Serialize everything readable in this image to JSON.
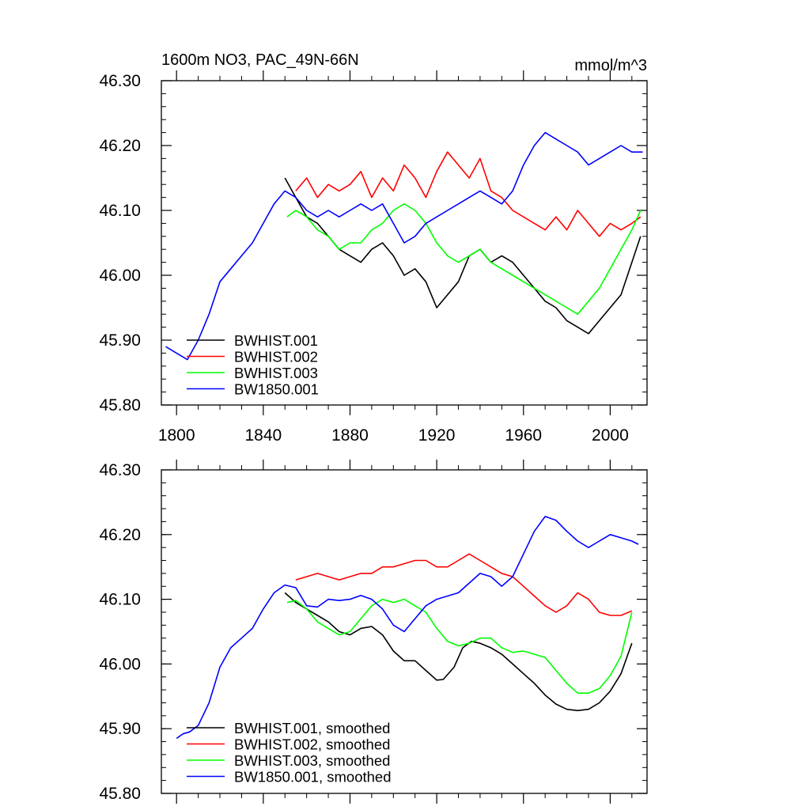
{
  "chart_data": [
    {
      "type": "line",
      "title_left": "1600m NO3, PAC_49N-66N",
      "title_right": "mmol/m^3",
      "xlim": [
        1793,
        2017
      ],
      "ylim": [
        45.8,
        46.3
      ],
      "xticks": [
        1800,
        1840,
        1880,
        1920,
        1960,
        2000
      ],
      "xtick_labels": [
        "1800",
        "1840",
        "1880",
        "1920",
        "1960",
        "2000"
      ],
      "yticks": [
        45.8,
        45.9,
        46.0,
        46.1,
        46.2,
        46.3
      ],
      "ytick_labels": [
        "45.80",
        "45.90",
        "46.00",
        "46.10",
        "46.20",
        "46.30"
      ],
      "legend_position": "bottom-left",
      "series": [
        {
          "name": "BWHIST.001",
          "color": "#000000",
          "x": [
            1850,
            1855,
            1860,
            1865,
            1870,
            1875,
            1880,
            1885,
            1890,
            1895,
            1900,
            1905,
            1910,
            1915,
            1920,
            1925,
            1930,
            1935,
            1940,
            1945,
            1950,
            1955,
            1960,
            1965,
            1970,
            1975,
            1980,
            1985,
            1990,
            1995,
            2000,
            2005,
            2010,
            2014
          ],
          "y": [
            46.15,
            46.12,
            46.09,
            46.08,
            46.06,
            46.04,
            46.03,
            46.02,
            46.04,
            46.05,
            46.03,
            46.0,
            46.01,
            45.99,
            45.95,
            45.97,
            45.99,
            46.03,
            46.04,
            46.02,
            46.03,
            46.02,
            46.0,
            45.98,
            45.96,
            45.95,
            45.93,
            45.92,
            45.91,
            45.93,
            45.95,
            45.97,
            46.02,
            46.06
          ]
        },
        {
          "name": "BWHIST.002",
          "color": "#ff0000",
          "x": [
            1855,
            1860,
            1865,
            1870,
            1875,
            1880,
            1885,
            1890,
            1895,
            1900,
            1905,
            1910,
            1915,
            1920,
            1925,
            1930,
            1935,
            1940,
            1945,
            1950,
            1955,
            1960,
            1965,
            1970,
            1975,
            1980,
            1985,
            1990,
            1995,
            2000,
            2005,
            2010,
            2014
          ],
          "y": [
            46.13,
            46.15,
            46.12,
            46.14,
            46.13,
            46.14,
            46.16,
            46.12,
            46.15,
            46.13,
            46.17,
            46.15,
            46.12,
            46.16,
            46.19,
            46.17,
            46.15,
            46.18,
            46.13,
            46.12,
            46.1,
            46.09,
            46.08,
            46.07,
            46.09,
            46.07,
            46.1,
            46.08,
            46.06,
            46.08,
            46.07,
            46.08,
            46.09
          ]
        },
        {
          "name": "BWHIST.003",
          "color": "#00ff00",
          "x": [
            1851,
            1855,
            1860,
            1865,
            1870,
            1875,
            1880,
            1885,
            1890,
            1895,
            1900,
            1905,
            1910,
            1915,
            1920,
            1925,
            1930,
            1935,
            1940,
            1945,
            1950,
            1955,
            1960,
            1965,
            1970,
            1975,
            1980,
            1985,
            1990,
            1995,
            2000,
            2005,
            2010,
            2014
          ],
          "y": [
            46.09,
            46.1,
            46.09,
            46.07,
            46.06,
            46.04,
            46.05,
            46.05,
            46.07,
            46.08,
            46.1,
            46.11,
            46.1,
            46.08,
            46.05,
            46.03,
            46.02,
            46.03,
            46.04,
            46.02,
            46.01,
            46.0,
            45.99,
            45.98,
            45.97,
            45.96,
            45.95,
            45.94,
            45.96,
            45.98,
            46.01,
            46.04,
            46.07,
            46.1
          ]
        },
        {
          "name": "BW1850.001",
          "color": "#0000ff",
          "x": [
            1795,
            1800,
            1805,
            1810,
            1815,
            1820,
            1825,
            1830,
            1835,
            1840,
            1845,
            1850,
            1855,
            1860,
            1865,
            1870,
            1875,
            1880,
            1885,
            1890,
            1895,
            1900,
            1905,
            1910,
            1915,
            1920,
            1925,
            1930,
            1935,
            1940,
            1945,
            1950,
            1955,
            1960,
            1965,
            1970,
            1975,
            1980,
            1985,
            1990,
            1995,
            2000,
            2005,
            2010,
            2015
          ],
          "y": [
            45.89,
            45.88,
            45.87,
            45.9,
            45.94,
            45.99,
            46.01,
            46.03,
            46.05,
            46.08,
            46.11,
            46.13,
            46.12,
            46.1,
            46.09,
            46.1,
            46.09,
            46.1,
            46.11,
            46.1,
            46.11,
            46.08,
            46.05,
            46.06,
            46.08,
            46.09,
            46.1,
            46.11,
            46.12,
            46.13,
            46.12,
            46.11,
            46.13,
            46.17,
            46.2,
            46.22,
            46.21,
            46.2,
            46.19,
            46.17,
            46.18,
            46.19,
            46.2,
            46.19,
            46.19
          ]
        }
      ]
    },
    {
      "type": "line",
      "xlim": [
        1793,
        2017
      ],
      "ylim": [
        45.8,
        46.3
      ],
      "xticks": [
        1800,
        1840,
        1880,
        1920,
        1960,
        2000
      ],
      "yticks": [
        45.8,
        45.9,
        46.0,
        46.1,
        46.2,
        46.3
      ],
      "ytick_labels": [
        "45.80",
        "45.90",
        "46.00",
        "46.10",
        "46.20",
        "46.30"
      ],
      "legend_position": "bottom-left",
      "series": [
        {
          "name": "BWHIST.001, smoothed",
          "color": "#000000",
          "x": [
            1850,
            1855,
            1860,
            1865,
            1870,
            1875,
            1880,
            1885,
            1890,
            1895,
            1900,
            1905,
            1910,
            1915,
            1920,
            1923,
            1928,
            1932,
            1936,
            1940,
            1945,
            1950,
            1955,
            1960,
            1965,
            1970,
            1975,
            1980,
            1985,
            1990,
            1995,
            2000,
            2005,
            2010
          ],
          "y": [
            46.11,
            46.095,
            46.085,
            46.075,
            46.065,
            46.05,
            46.045,
            46.055,
            46.058,
            46.045,
            46.02,
            46.005,
            46.005,
            45.99,
            45.975,
            45.976,
            45.995,
            46.025,
            46.035,
            46.032,
            46.025,
            46.015,
            46.0,
            45.985,
            45.97,
            45.952,
            45.938,
            45.93,
            45.928,
            45.93,
            45.94,
            45.958,
            45.985,
            46.032
          ]
        },
        {
          "name": "BWHIST.002, smoothed",
          "color": "#ff0000",
          "x": [
            1855,
            1860,
            1865,
            1870,
            1875,
            1880,
            1885,
            1890,
            1895,
            1900,
            1905,
            1910,
            1915,
            1920,
            1925,
            1930,
            1935,
            1940,
            1945,
            1950,
            1955,
            1960,
            1965,
            1970,
            1975,
            1980,
            1985,
            1990,
            1995,
            2000,
            2005,
            2010
          ],
          "y": [
            46.13,
            46.135,
            46.14,
            46.135,
            46.13,
            46.135,
            46.14,
            46.14,
            46.15,
            46.15,
            46.155,
            46.16,
            46.16,
            46.15,
            46.15,
            46.16,
            46.17,
            46.16,
            46.15,
            46.14,
            46.135,
            46.12,
            46.105,
            46.09,
            46.08,
            46.09,
            46.11,
            46.1,
            46.08,
            46.075,
            46.075,
            46.082
          ]
        },
        {
          "name": "BWHIST.003, smoothed",
          "color": "#00ff00",
          "x": [
            1851,
            1855,
            1860,
            1865,
            1870,
            1875,
            1880,
            1885,
            1890,
            1895,
            1900,
            1905,
            1910,
            1915,
            1920,
            1925,
            1930,
            1935,
            1940,
            1945,
            1950,
            1955,
            1960,
            1965,
            1970,
            1975,
            1980,
            1985,
            1990,
            1995,
            2000,
            2005,
            2010
          ],
          "y": [
            46.095,
            46.098,
            46.085,
            46.065,
            46.055,
            46.045,
            46.05,
            46.07,
            46.09,
            46.1,
            46.095,
            46.1,
            46.09,
            46.08,
            46.055,
            46.035,
            46.028,
            46.032,
            46.04,
            46.04,
            46.025,
            46.018,
            46.02,
            46.015,
            46.01,
            45.99,
            45.97,
            45.955,
            45.955,
            45.962,
            45.982,
            46.012,
            46.08
          ]
        },
        {
          "name": "BW1850.001, smoothed",
          "color": "#0000ff",
          "x": [
            1800,
            1803,
            1806,
            1810,
            1815,
            1820,
            1825,
            1830,
            1835,
            1840,
            1845,
            1850,
            1855,
            1860,
            1865,
            1870,
            1875,
            1880,
            1885,
            1890,
            1895,
            1900,
            1905,
            1910,
            1915,
            1920,
            1925,
            1930,
            1935,
            1940,
            1945,
            1950,
            1955,
            1960,
            1965,
            1970,
            1975,
            1980,
            1985,
            1990,
            1995,
            2000,
            2005,
            2010,
            2013
          ],
          "y": [
            45.885,
            45.892,
            45.895,
            45.905,
            45.94,
            45.995,
            46.025,
            46.04,
            46.055,
            46.085,
            46.11,
            46.122,
            46.118,
            46.09,
            46.088,
            46.1,
            46.098,
            46.1,
            46.106,
            46.1,
            46.085,
            46.06,
            46.05,
            46.07,
            46.09,
            46.1,
            46.105,
            46.11,
            46.125,
            46.14,
            46.135,
            46.12,
            46.135,
            46.17,
            46.205,
            46.228,
            46.222,
            46.205,
            46.19,
            46.18,
            46.19,
            46.2,
            46.195,
            46.19,
            46.185
          ]
        }
      ]
    }
  ]
}
